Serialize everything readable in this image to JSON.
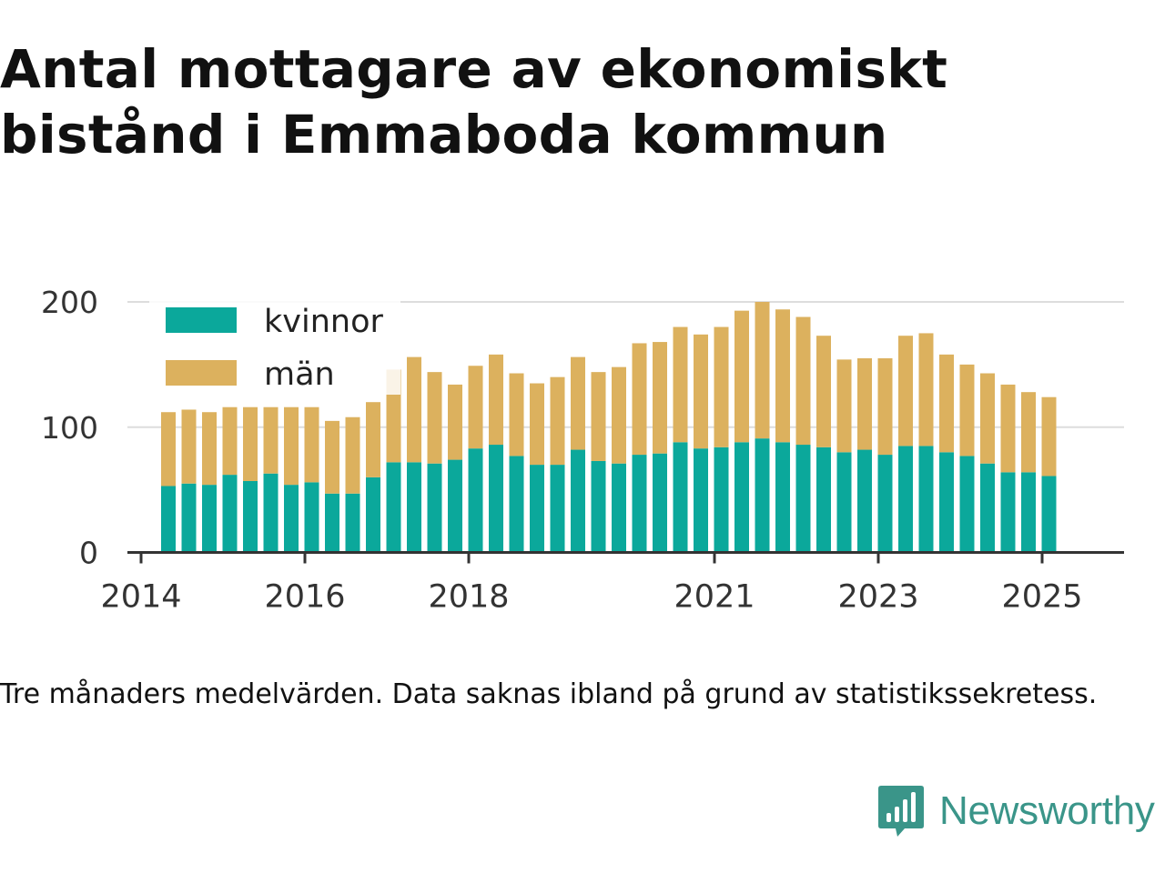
{
  "title": "Antal mottagare av ekonomiskt bistånd i Emmaboda kommun",
  "note": "Tre månaders medelvärden. Data saknas ibland på grund av statistikssekretess.",
  "brand": {
    "name": "Newsworthy",
    "icon": "newsworthy-logo-icon"
  },
  "colors": {
    "kvinnor": "#0ba89b",
    "man": "#dcb15e",
    "grid": "#dddddd",
    "axis": "#333333",
    "brand": "#3a9589"
  },
  "chart_data": {
    "type": "bar",
    "stacked": true,
    "ylim": [
      0,
      200
    ],
    "y_ticks": [
      0,
      100,
      200
    ],
    "x_ticks": [
      "2014",
      "2016",
      "2018",
      "2021",
      "2023",
      "2025"
    ],
    "x_range": [
      "2013-11",
      "2026-01"
    ],
    "legend": {
      "placement": "top-left",
      "items": [
        "kvinnor",
        "män"
      ]
    },
    "grid": true,
    "x": [
      "2014-05",
      "2014-08",
      "2014-11",
      "2015-02",
      "2015-05",
      "2015-08",
      "2015-11",
      "2016-02",
      "2016-05",
      "2016-08",
      "2016-11",
      "2017-02",
      "2017-05",
      "2017-08",
      "2017-11",
      "2018-02",
      "2018-05",
      "2018-08",
      "2018-11",
      "2019-02",
      "2019-05",
      "2019-08",
      "2019-11",
      "2020-02",
      "2020-05",
      "2020-08",
      "2020-11",
      "2021-02",
      "2021-05",
      "2021-08",
      "2021-11",
      "2022-02",
      "2022-05",
      "2022-08",
      "2022-11",
      "2023-02",
      "2023-05",
      "2023-08",
      "2023-11",
      "2024-02",
      "2024-05",
      "2024-08",
      "2024-11",
      "2025-02"
    ],
    "series": [
      {
        "name": "kvinnor",
        "values": [
          53,
          55,
          54,
          62,
          57,
          63,
          54,
          56,
          47,
          47,
          60,
          72,
          72,
          71,
          74,
          83,
          86,
          77,
          70,
          70,
          82,
          73,
          71,
          78,
          79,
          88,
          83,
          84,
          88,
          91,
          88,
          86,
          84,
          80,
          82,
          78,
          85,
          85,
          80,
          77,
          71,
          64,
          64,
          61
        ]
      },
      {
        "name": "män",
        "values": [
          59,
          59,
          58,
          54,
          59,
          53,
          62,
          60,
          58,
          61,
          60,
          74,
          84,
          73,
          60,
          66,
          72,
          66,
          65,
          70,
          74,
          71,
          77,
          89,
          89,
          92,
          91,
          96,
          105,
          109,
          106,
          102,
          89,
          74,
          73,
          77,
          88,
          90,
          78,
          73,
          72,
          70,
          64,
          63
        ]
      }
    ]
  }
}
